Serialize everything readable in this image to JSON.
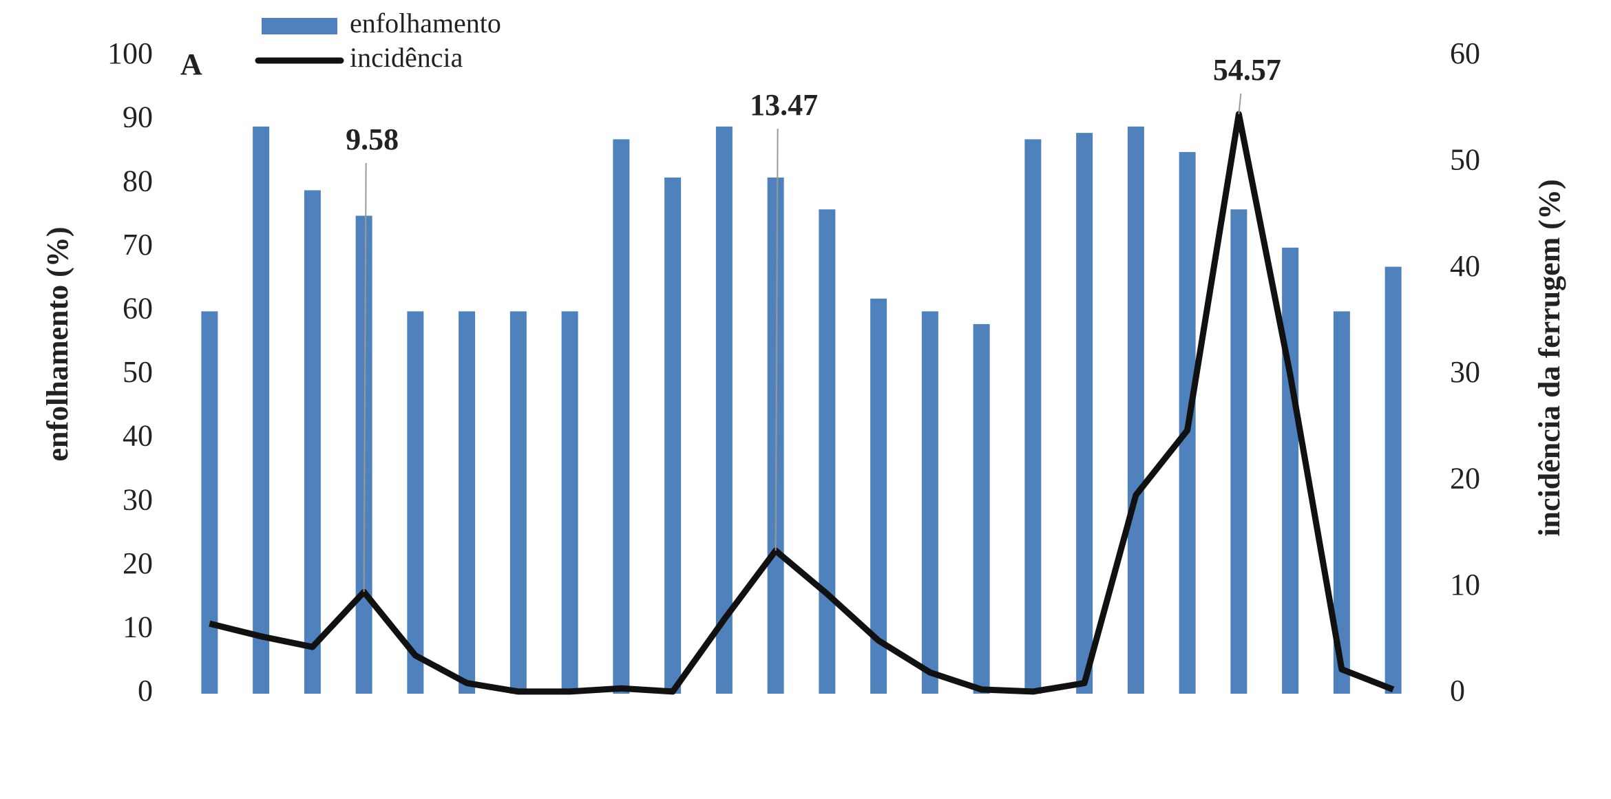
{
  "chart_data": {
    "type": "bar-line",
    "panel_label": "A",
    "y_label": "enfolhamento (%)",
    "y2_label": "incidência da ferrugem (%)",
    "categories": [
      null,
      null,
      null,
      null,
      null,
      null,
      null,
      null,
      null,
      null,
      null,
      null,
      null,
      null,
      null,
      null,
      null,
      null,
      null,
      null,
      null,
      null,
      null,
      null
    ],
    "series": [
      {
        "name": "enfolhamento",
        "type": "bar",
        "color": "#4f81bd",
        "values": [
          60,
          89,
          79,
          75,
          60,
          60,
          60,
          60,
          87,
          81,
          89,
          81,
          76,
          62,
          60,
          58,
          87,
          88,
          89,
          85,
          76,
          70,
          60,
          67
        ]
      },
      {
        "name": "incidência",
        "type": "line",
        "axis": "y2",
        "color": "#111111",
        "values": [
          6.6,
          5.4,
          4.4,
          9.58,
          3.6,
          1.0,
          0.2,
          0.2,
          0.5,
          0.2,
          7,
          13.47,
          9.4,
          5,
          2,
          0.4,
          0.2,
          1,
          18.7,
          24.8,
          54.57,
          30,
          2.3,
          0.4
        ],
        "labeled_points": [
          3,
          11,
          20
        ]
      }
    ],
    "ylim": [
      0,
      100
    ],
    "yticks": [
      0,
      10,
      20,
      30,
      40,
      50,
      60,
      70,
      80,
      90,
      100
    ],
    "y2lim": [
      0,
      60
    ],
    "y2ticks": [
      0,
      10,
      20,
      30,
      40,
      50,
      60
    ],
    "grid": false,
    "legend": "top-left"
  }
}
